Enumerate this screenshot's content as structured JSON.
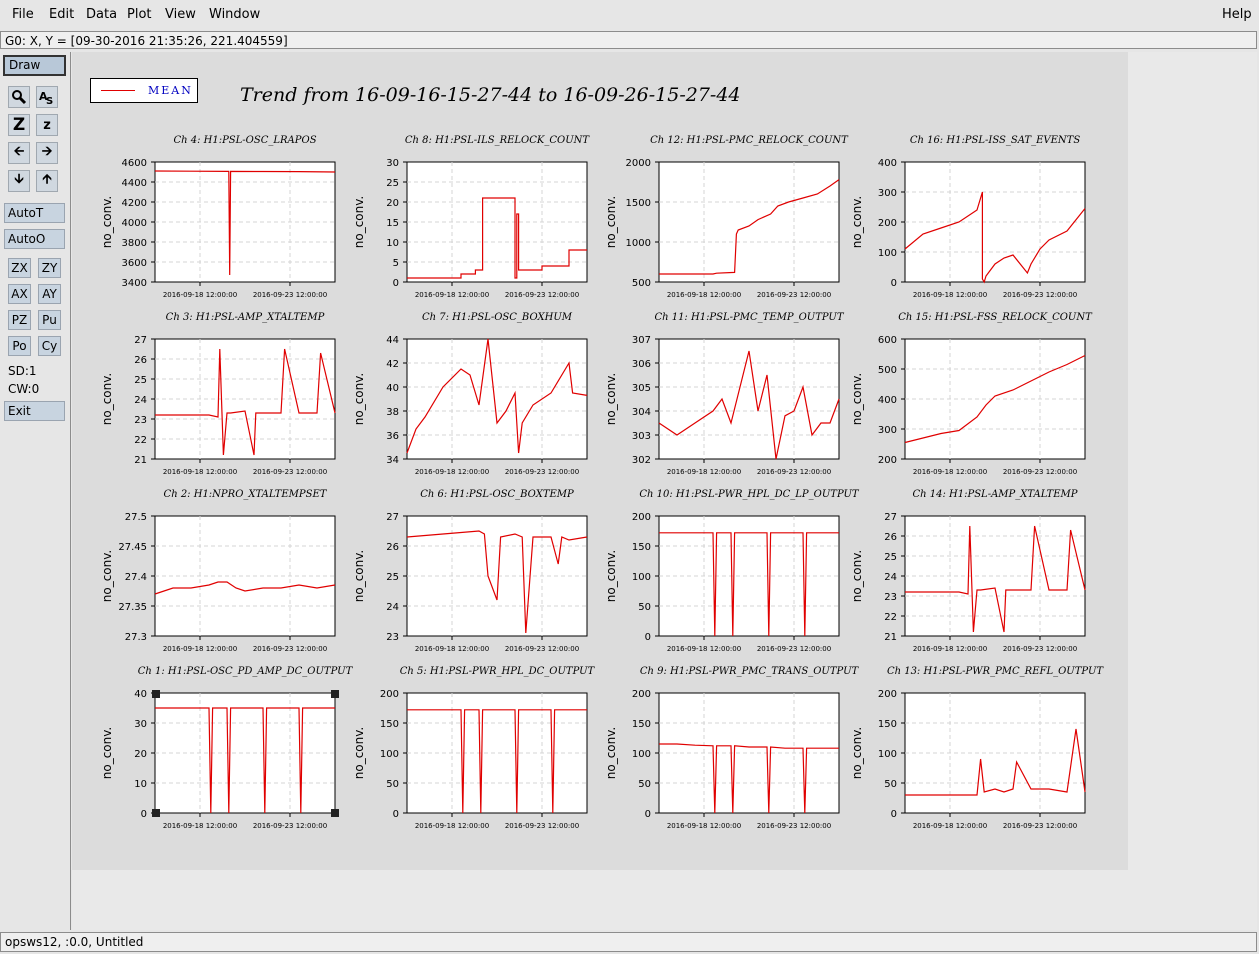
{
  "menu": {
    "file": "File",
    "edit": "Edit",
    "data": "Data",
    "plot": "Plot",
    "view": "View",
    "window": "Window",
    "help": "Help"
  },
  "coord_readout": "G0: X, Y = [09-30-2016 21:35:26, 221.404559]",
  "toolbar": {
    "draw": "Draw",
    "autot": "AutoT",
    "autoo": "AutoO",
    "zx": "ZX",
    "zy": "ZY",
    "ax": "AX",
    "ay": "AY",
    "pz": "PZ",
    "pu": "Pu",
    "po": "Po",
    "cy": "Cy",
    "sd": "SD:1",
    "cw": "CW:0",
    "exit": "Exit"
  },
  "status": "opsws12, :0.0, Untitled",
  "legend": "MEAN",
  "title": "Trend from 16-09-16-15-27-44 to 16-09-26-15-27-44",
  "colors": {
    "trace": "#e00000",
    "legend_text": "#0000c0"
  },
  "chart_data": [
    {
      "type": "line",
      "title": "Ch 4: H1:PSL-OSC_LRAPOS",
      "ylabel": "no_conv.",
      "ylim": [
        3400,
        4600
      ],
      "yticks": [
        "4600",
        "4400",
        "4200",
        "4000",
        "3800",
        "3600",
        "3400"
      ],
      "xticks": [
        "2016-09-18 12:00:00",
        "2016-09-23 12:00:00"
      ],
      "x": [
        0,
        0.2,
        0.4,
        0.41,
        0.415,
        0.42,
        0.6,
        0.8,
        1
      ],
      "y": [
        4510,
        4508,
        4506,
        4506,
        3470,
        4506,
        4505,
        4504,
        4500
      ]
    },
    {
      "type": "line",
      "title": "Ch 8: H1:PSL-ILS_RELOCK_COUNT",
      "ylabel": "no_conv.",
      "ylim": [
        0,
        30
      ],
      "yticks": [
        "30",
        "25",
        "20",
        "15",
        "10",
        "5",
        "0"
      ],
      "xticks": [
        "2016-09-18 12:00:00",
        "2016-09-23 12:00:00"
      ],
      "x": [
        0,
        0.3,
        0.3,
        0.38,
        0.38,
        0.42,
        0.42,
        0.44,
        0.44,
        0.6,
        0.6,
        0.61,
        0.61,
        0.62,
        0.62,
        0.75,
        0.75,
        0.9,
        0.9,
        1
      ],
      "y": [
        1,
        1,
        2,
        2,
        3,
        3,
        21,
        21,
        21,
        21,
        1,
        1,
        17,
        17,
        3,
        3,
        4,
        4,
        8,
        8
      ]
    },
    {
      "type": "line",
      "title": "Ch 12: H1:PSL-PMC_RELOCK_COUNT",
      "ylabel": "no_conv.",
      "ylim": [
        500,
        2000
      ],
      "yticks": [
        "2000",
        "1500",
        "1000",
        "500"
      ],
      "xticks": [
        "2016-09-18 12:00:00",
        "2016-09-23 12:00:00"
      ],
      "x": [
        0,
        0.3,
        0.32,
        0.42,
        0.43,
        0.44,
        0.5,
        0.55,
        0.62,
        0.66,
        0.72,
        0.8,
        0.88,
        0.95,
        1
      ],
      "y": [
        600,
        600,
        610,
        620,
        1100,
        1150,
        1200,
        1280,
        1350,
        1450,
        1500,
        1550,
        1600,
        1700,
        1780
      ]
    },
    {
      "type": "line",
      "title": "Ch 16: H1:PSL-ISS_SAT_EVENTS",
      "ylabel": "no_conv.",
      "ylim": [
        0,
        400
      ],
      "yticks": [
        "400",
        "300",
        "200",
        "100",
        "0"
      ],
      "xticks": [
        "2016-09-18 12:00:00",
        "2016-09-23 12:00:00"
      ],
      "x": [
        0,
        0.1,
        0.2,
        0.3,
        0.4,
        0.43,
        0.43,
        0.44,
        0.45,
        0.5,
        0.55,
        0.6,
        0.68,
        0.7,
        0.75,
        0.8,
        0.9,
        1
      ],
      "y": [
        110,
        160,
        180,
        200,
        240,
        300,
        10,
        0,
        20,
        60,
        80,
        90,
        30,
        60,
        110,
        140,
        170,
        245
      ]
    },
    {
      "type": "line",
      "title": "Ch 3: H1:PSL-AMP_XTALTEMP",
      "ylabel": "no_conv.",
      "ylim": [
        21,
        27
      ],
      "yticks": [
        "27",
        "26",
        "25",
        "24",
        "23",
        "22",
        "21"
      ],
      "xticks": [
        "2016-09-18 12:00:00",
        "2016-09-23 12:00:00"
      ],
      "x": [
        0,
        0.2,
        0.3,
        0.35,
        0.36,
        0.38,
        0.4,
        0.42,
        0.5,
        0.55,
        0.56,
        0.6,
        0.7,
        0.72,
        0.8,
        0.85,
        0.9,
        0.92,
        1
      ],
      "y": [
        23.2,
        23.2,
        23.2,
        23.1,
        26.5,
        21.2,
        23.3,
        23.3,
        23.4,
        21.2,
        23.3,
        23.3,
        23.3,
        26.5,
        23.3,
        23.3,
        23.3,
        26.3,
        23.3
      ]
    },
    {
      "type": "line",
      "title": "Ch 7: H1:PSL-OSC_BOXHUM",
      "ylabel": "no_conv.",
      "ylim": [
        34,
        44
      ],
      "yticks": [
        "44",
        "42",
        "40",
        "38",
        "36",
        "34"
      ],
      "xticks": [
        "2016-09-18 12:00:00",
        "2016-09-23 12:00:00"
      ],
      "x": [
        0,
        0.05,
        0.1,
        0.2,
        0.3,
        0.35,
        0.4,
        0.45,
        0.5,
        0.55,
        0.6,
        0.62,
        0.64,
        0.7,
        0.8,
        0.9,
        0.92,
        1
      ],
      "y": [
        34.5,
        36.5,
        37.5,
        40,
        41.5,
        41,
        38.5,
        44,
        37,
        38,
        39.5,
        34.5,
        37,
        38.5,
        39.5,
        42,
        39.5,
        39.3
      ]
    },
    {
      "type": "line",
      "title": "Ch 11: H1:PSL-PMC_TEMP_OUTPUT",
      "ylabel": "no_conv.",
      "ylim": [
        302,
        307
      ],
      "yticks": [
        "307",
        "306",
        "305",
        "304",
        "303",
        "302"
      ],
      "xticks": [
        "2016-09-18 12:00:00",
        "2016-09-23 12:00:00"
      ],
      "x": [
        0,
        0.1,
        0.2,
        0.3,
        0.35,
        0.4,
        0.45,
        0.5,
        0.55,
        0.6,
        0.65,
        0.7,
        0.75,
        0.8,
        0.85,
        0.9,
        0.95,
        1
      ],
      "y": [
        303.5,
        303,
        303.5,
        304,
        304.5,
        303.5,
        305,
        306.5,
        304,
        305.5,
        302,
        303.8,
        304,
        305,
        303,
        303.5,
        303.5,
        304.5
      ]
    },
    {
      "type": "line",
      "title": "Ch 15: H1:PSL-FSS_RELOCK_COUNT",
      "ylabel": "no_conv.",
      "ylim": [
        200,
        600
      ],
      "yticks": [
        "600",
        "500",
        "400",
        "300",
        "200"
      ],
      "xticks": [
        "2016-09-18 12:00:00",
        "2016-09-23 12:00:00"
      ],
      "x": [
        0,
        0.1,
        0.2,
        0.3,
        0.4,
        0.45,
        0.5,
        0.6,
        0.7,
        0.8,
        0.9,
        1
      ],
      "y": [
        255,
        270,
        285,
        295,
        340,
        380,
        410,
        430,
        460,
        490,
        515,
        545
      ]
    },
    {
      "type": "line",
      "title": "Ch 2: H1:NPRO_XTALTEMPSET",
      "ylabel": "no_conv.",
      "ylim": [
        27.3,
        27.5
      ],
      "yticks": [
        "27.5",
        "27.45",
        "27.4",
        "27.35",
        "27.3"
      ],
      "xticks": [
        "2016-09-18 12:00:00",
        "2016-09-23 12:00:00"
      ],
      "x": [
        0,
        0.1,
        0.2,
        0.3,
        0.35,
        0.4,
        0.45,
        0.5,
        0.6,
        0.7,
        0.8,
        0.9,
        1
      ],
      "y": [
        27.37,
        27.38,
        27.38,
        27.385,
        27.39,
        27.39,
        27.38,
        27.375,
        27.38,
        27.38,
        27.385,
        27.38,
        27.385
      ]
    },
    {
      "type": "line",
      "title": "Ch 6: H1:PSL-OSC_BOXTEMP",
      "ylabel": "no_conv.",
      "ylim": [
        23,
        27
      ],
      "yticks": [
        "27",
        "26",
        "25",
        "24",
        "23"
      ],
      "xticks": [
        "2016-09-18 12:00:00",
        "2016-09-23 12:00:00"
      ],
      "x": [
        0,
        0.2,
        0.4,
        0.43,
        0.45,
        0.5,
        0.52,
        0.6,
        0.64,
        0.66,
        0.7,
        0.8,
        0.84,
        0.86,
        0.9,
        1
      ],
      "y": [
        26.3,
        26.4,
        26.5,
        26.4,
        25,
        24.2,
        26.3,
        26.4,
        26.3,
        23.1,
        26.3,
        26.3,
        25.4,
        26.3,
        26.2,
        26.3
      ]
    },
    {
      "type": "line",
      "title": "Ch 10: H1:PSL-PWR_HPL_DC_LP_OUTPUT",
      "ylabel": "no_conv.",
      "ylim": [
        0,
        200
      ],
      "yticks": [
        "200",
        "150",
        "100",
        "50",
        "0"
      ],
      "xticks": [
        "2016-09-18 12:00:00",
        "2016-09-23 12:00:00"
      ],
      "x": [
        0,
        0.3,
        0.31,
        0.32,
        0.4,
        0.41,
        0.42,
        0.6,
        0.61,
        0.62,
        0.8,
        0.81,
        0.82,
        1
      ],
      "y": [
        172,
        172,
        0,
        172,
        172,
        0,
        172,
        172,
        0,
        172,
        172,
        0,
        172,
        172
      ]
    },
    {
      "type": "line",
      "title": "Ch 14: H1:PSL-AMP_XTALTEMP",
      "ylabel": "no_conv.",
      "ylim": [
        21,
        27
      ],
      "yticks": [
        "27",
        "26",
        "25",
        "24",
        "23",
        "22",
        "21"
      ],
      "xticks": [
        "2016-09-18 12:00:00",
        "2016-09-23 12:00:00"
      ],
      "x": [
        0,
        0.2,
        0.3,
        0.35,
        0.36,
        0.38,
        0.4,
        0.42,
        0.5,
        0.55,
        0.56,
        0.6,
        0.7,
        0.72,
        0.8,
        0.85,
        0.9,
        0.92,
        1
      ],
      "y": [
        23.2,
        23.2,
        23.2,
        23.1,
        26.5,
        21.2,
        23.3,
        23.3,
        23.4,
        21.2,
        23.3,
        23.3,
        23.3,
        26.5,
        23.3,
        23.3,
        23.3,
        26.3,
        23.3
      ]
    },
    {
      "type": "line",
      "title": "Ch 1: H1:PSL-OSC_PD_AMP_DC_OUTPUT",
      "ylabel": "no_conv.",
      "ylim": [
        0,
        40
      ],
      "yticks": [
        "40",
        "30",
        "20",
        "10",
        "0"
      ],
      "xticks": [
        "2016-09-18 12:00:00",
        "2016-09-23 12:00:00"
      ],
      "x": [
        0,
        0.3,
        0.31,
        0.32,
        0.4,
        0.41,
        0.42,
        0.6,
        0.61,
        0.62,
        0.8,
        0.81,
        0.82,
        1
      ],
      "y": [
        35,
        35,
        0,
        35,
        35,
        0,
        35,
        35,
        0,
        35,
        35,
        0,
        35,
        35
      ]
    },
    {
      "type": "line",
      "title": "Ch 5: H1:PSL-PWR_HPL_DC_OUTPUT",
      "ylabel": "no_conv.",
      "ylim": [
        0,
        200
      ],
      "yticks": [
        "200",
        "150",
        "100",
        "50",
        "0"
      ],
      "xticks": [
        "2016-09-18 12:00:00",
        "2016-09-23 12:00:00"
      ],
      "x": [
        0,
        0.3,
        0.31,
        0.32,
        0.4,
        0.41,
        0.42,
        0.6,
        0.61,
        0.62,
        0.8,
        0.81,
        0.82,
        1
      ],
      "y": [
        172,
        172,
        0,
        172,
        172,
        0,
        172,
        172,
        0,
        172,
        172,
        0,
        172,
        172
      ]
    },
    {
      "type": "line",
      "title": "Ch 9: H1:PSL-PWR_PMC_TRANS_OUTPUT",
      "ylabel": "no_conv.",
      "ylim": [
        0,
        200
      ],
      "yticks": [
        "200",
        "150",
        "100",
        "50",
        "0"
      ],
      "xticks": [
        "2016-09-18 12:00:00",
        "2016-09-23 12:00:00"
      ],
      "x": [
        0,
        0.1,
        0.2,
        0.3,
        0.31,
        0.32,
        0.4,
        0.41,
        0.42,
        0.5,
        0.6,
        0.61,
        0.62,
        0.7,
        0.8,
        0.81,
        0.82,
        0.9,
        1
      ],
      "y": [
        115,
        115,
        113,
        112,
        0,
        112,
        112,
        0,
        112,
        110,
        110,
        0,
        110,
        108,
        108,
        0,
        108,
        108,
        108
      ]
    },
    {
      "type": "line",
      "title": "Ch 13: H1:PSL-PWR_PMC_REFL_OUTPUT",
      "ylabel": "no_conv.",
      "ylim": [
        0,
        200
      ],
      "yticks": [
        "200",
        "150",
        "100",
        "50",
        "0"
      ],
      "xticks": [
        "2016-09-18 12:00:00",
        "2016-09-23 12:00:00"
      ],
      "x": [
        0,
        0.1,
        0.2,
        0.3,
        0.35,
        0.4,
        0.42,
        0.44,
        0.5,
        0.55,
        0.6,
        0.62,
        0.7,
        0.75,
        0.8,
        0.9,
        0.95,
        1
      ],
      "y": [
        30,
        30,
        30,
        30,
        30,
        30,
        90,
        35,
        40,
        35,
        40,
        85,
        40,
        40,
        40,
        35,
        140,
        35
      ]
    }
  ]
}
